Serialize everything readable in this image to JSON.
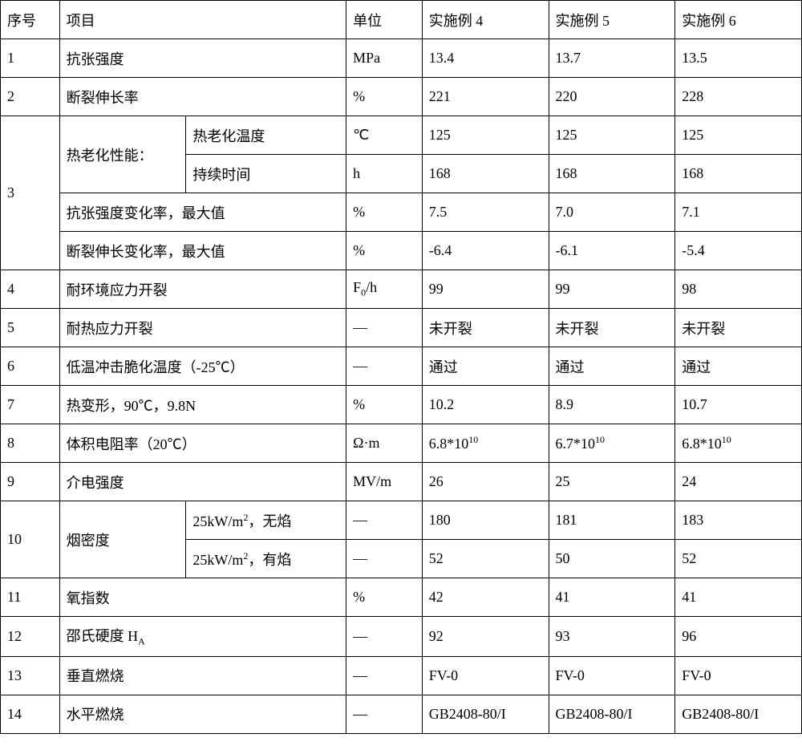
{
  "table": {
    "background_color": "#ffffff",
    "border_color": "#000000",
    "text_color": "#000000",
    "font_size": 18,
    "header": {
      "num": "序号",
      "item": "项目",
      "unit": "单位",
      "col4": "实施例 4",
      "col5": "实施例 5",
      "col6": "实施例 6"
    },
    "rows": {
      "r1": {
        "num": "1",
        "item": "抗张强度",
        "unit": "MPa",
        "v4": "13.4",
        "v5": "13.7",
        "v6": "13.5"
      },
      "r2": {
        "num": "2",
        "item": "断裂伸长率",
        "unit": "%",
        "v4": "221",
        "v5": "220",
        "v6": "228"
      },
      "r3": {
        "num": "3",
        "group_label": "热老化性能：",
        "sub1": {
          "label": "热老化温度",
          "unit": "℃",
          "v4": "125",
          "v5": "125",
          "v6": "125"
        },
        "sub2": {
          "label": "持续时间",
          "unit": "h",
          "v4": "168",
          "v5": "168",
          "v6": "168"
        },
        "sub3": {
          "item": "抗张强度变化率，最大值",
          "unit": "%",
          "v4": "7.5",
          "v5": "7.0",
          "v6": "7.1"
        },
        "sub4": {
          "item": "断裂伸长变化率，最大值",
          "unit": "%",
          "v4": "-6.4",
          "v5": "-6.1",
          "v6": "-5.4"
        }
      },
      "r4": {
        "num": "4",
        "item": "耐环境应力开裂",
        "unit_html": "F<sub>0</sub>/h",
        "v4": "99",
        "v5": "99",
        "v6": "98"
      },
      "r5": {
        "num": "5",
        "item": "耐热应力开裂",
        "unit": "—",
        "v4": "未开裂",
        "v5": "未开裂",
        "v6": "未开裂"
      },
      "r6": {
        "num": "6",
        "item": "低温冲击脆化温度（-25℃）",
        "unit": "—",
        "v4": "通过",
        "v5": "通过",
        "v6": "通过"
      },
      "r7": {
        "num": "7",
        "item": "热变形，90℃，9.8N",
        "unit": "%",
        "v4": "10.2",
        "v5": "8.9",
        "v6": "10.7"
      },
      "r8": {
        "num": "8",
        "item": "体积电阻率（20℃）",
        "unit": "Ω·m",
        "v4_html": "6.8*10<sup>10</sup>",
        "v5_html": "6.7*10<sup>10</sup>",
        "v6_html": "6.8*10<sup>10</sup>"
      },
      "r9": {
        "num": "9",
        "item": "介电强度",
        "unit": "MV/m",
        "v4": "26",
        "v5": "25",
        "v6": "24"
      },
      "r10": {
        "num": "10",
        "group_label": "烟密度",
        "sub1": {
          "label_html": "25kW/m<sup>2</sup>，无焰",
          "unit": "—",
          "v4": "180",
          "v5": "181",
          "v6": "183"
        },
        "sub2": {
          "label_html": "25kW/m<sup>2</sup>，有焰",
          "unit": "—",
          "v4": "52",
          "v5": "50",
          "v6": "52"
        }
      },
      "r11": {
        "num": "11",
        "item": "氧指数",
        "unit": "%",
        "v4": "42",
        "v5": "41",
        "v6": "41"
      },
      "r12": {
        "num": "12",
        "item_html": "邵氏硬度 H<sub>A</sub>",
        "unit": "—",
        "v4": "92",
        "v5": "93",
        "v6": "96"
      },
      "r13": {
        "num": "13",
        "item": "垂直燃烧",
        "unit": "—",
        "v4": "FV-0",
        "v5": "FV-0",
        "v6": "FV-0"
      },
      "r14": {
        "num": "14",
        "item": "水平燃烧",
        "unit": "—",
        "v4": "GB2408-80/I",
        "v5": "GB2408-80/I",
        "v6": "GB2408-80/I"
      }
    }
  }
}
